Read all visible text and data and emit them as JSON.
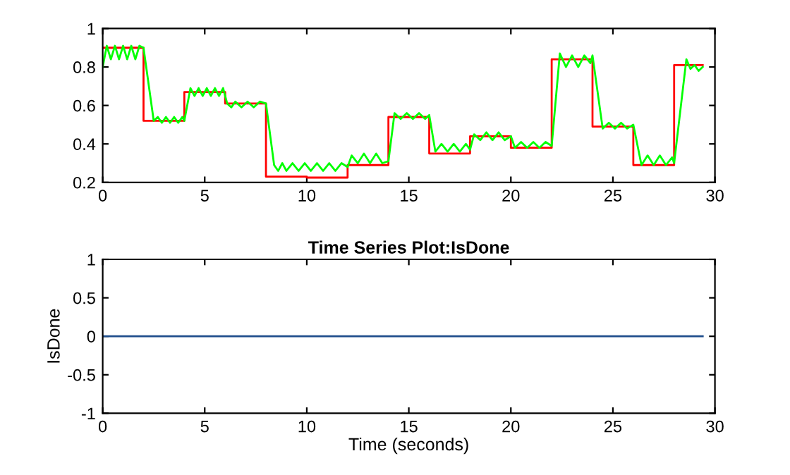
{
  "chart_data": [
    {
      "type": "line",
      "xlim": [
        0,
        30
      ],
      "ylim": [
        0.2,
        1
      ],
      "xticks": [
        0,
        5,
        10,
        15,
        20,
        25,
        30
      ],
      "yticks": [
        0.2,
        0.4,
        0.6,
        0.8,
        1
      ],
      "grid": false,
      "legend": false,
      "series": [
        {
          "type": "step",
          "color": "#ff0000",
          "x": [
            0,
            2,
            4,
            6,
            8,
            10,
            12,
            14,
            16,
            18,
            20,
            22,
            24,
            26,
            28,
            29.4
          ],
          "values": [
            0.9,
            0.52,
            0.67,
            0.61,
            0.23,
            0.225,
            0.29,
            0.54,
            0.35,
            0.44,
            0.38,
            0.84,
            0.49,
            0.29,
            0.81,
            0.81
          ]
        },
        {
          "color": "#00ff00",
          "x": [
            0,
            0.2,
            0.4,
            0.6,
            0.8,
            1.0,
            1.2,
            1.4,
            1.6,
            1.8,
            2.0,
            2.5,
            2.7,
            2.9,
            3.1,
            3.3,
            3.5,
            3.7,
            3.9,
            4.0,
            4.3,
            4.5,
            4.7,
            4.9,
            5.1,
            5.3,
            5.5,
            5.7,
            5.9,
            6.1,
            6.3,
            6.5,
            6.8,
            7.1,
            7.4,
            7.7,
            8.0,
            8.4,
            8.6,
            8.8,
            9.0,
            9.3,
            9.6,
            9.9,
            10.2,
            10.5,
            10.8,
            11.1,
            11.4,
            11.7,
            12.0,
            12.2,
            12.5,
            12.8,
            13.1,
            13.4,
            13.7,
            14.0,
            14.3,
            14.6,
            14.9,
            15.2,
            15.5,
            15.8,
            16.0,
            16.3,
            16.6,
            16.9,
            17.2,
            17.5,
            17.8,
            18.0,
            18.2,
            18.5,
            18.8,
            19.1,
            19.4,
            19.7,
            20.0,
            20.2,
            20.5,
            20.8,
            21.1,
            21.4,
            21.7,
            22.0,
            22.4,
            22.7,
            23.0,
            23.3,
            23.6,
            23.9,
            24.0,
            24.5,
            24.8,
            25.1,
            25.4,
            25.7,
            26.0,
            26.4,
            26.7,
            27.0,
            27.3,
            27.6,
            27.9,
            28.0,
            28.6,
            28.8,
            29.0,
            29.2,
            29.4
          ],
          "values": [
            0.8,
            0.91,
            0.84,
            0.91,
            0.84,
            0.91,
            0.84,
            0.91,
            0.84,
            0.91,
            0.9,
            0.52,
            0.54,
            0.51,
            0.54,
            0.51,
            0.54,
            0.51,
            0.54,
            0.52,
            0.69,
            0.65,
            0.69,
            0.65,
            0.69,
            0.65,
            0.69,
            0.65,
            0.69,
            0.61,
            0.59,
            0.62,
            0.59,
            0.62,
            0.59,
            0.62,
            0.61,
            0.29,
            0.26,
            0.3,
            0.26,
            0.3,
            0.26,
            0.3,
            0.26,
            0.3,
            0.26,
            0.3,
            0.26,
            0.3,
            0.28,
            0.34,
            0.3,
            0.35,
            0.3,
            0.35,
            0.3,
            0.31,
            0.56,
            0.53,
            0.56,
            0.53,
            0.56,
            0.53,
            0.55,
            0.36,
            0.4,
            0.36,
            0.4,
            0.36,
            0.4,
            0.37,
            0.45,
            0.42,
            0.46,
            0.42,
            0.46,
            0.42,
            0.44,
            0.38,
            0.41,
            0.38,
            0.41,
            0.38,
            0.41,
            0.39,
            0.87,
            0.8,
            0.86,
            0.8,
            0.86,
            0.82,
            0.86,
            0.48,
            0.51,
            0.48,
            0.51,
            0.48,
            0.5,
            0.29,
            0.34,
            0.29,
            0.34,
            0.29,
            0.33,
            0.3,
            0.84,
            0.79,
            0.81,
            0.78,
            0.8
          ]
        }
      ]
    },
    {
      "type": "line",
      "title": "Time Series Plot:IsDone",
      "xlabel": "Time (seconds)",
      "ylabel": "IsDone",
      "xlim": [
        0,
        30
      ],
      "ylim": [
        -1,
        1
      ],
      "xticks": [
        0,
        5,
        10,
        15,
        20,
        25,
        30
      ],
      "yticks": [
        -1,
        -0.5,
        0,
        0.5,
        1
      ],
      "grid": false,
      "legend": false,
      "series": [
        {
          "color": "#1f4e8c",
          "x": [
            0,
            29.4
          ],
          "values": [
            0,
            0
          ]
        }
      ]
    }
  ]
}
